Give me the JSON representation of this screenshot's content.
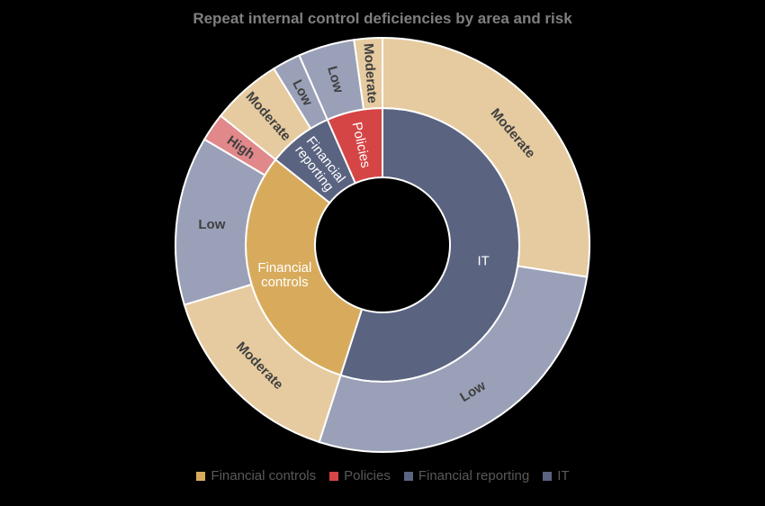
{
  "chart_data": {
    "type": "sunburst",
    "title": "Repeat internal control deficiencies by area and risk",
    "start_angle_deg": 0,
    "direction": "clockwise",
    "categories": [
      {
        "name": "IT",
        "label_lines": [
          "IT"
        ],
        "color": "#5a6380",
        "children": [
          {
            "name": "Moderate",
            "value": 25,
            "color": "#e6cba0"
          },
          {
            "name": "Low",
            "value": 25,
            "color": "#9aa0b7"
          }
        ]
      },
      {
        "name": "Financial controls",
        "label_lines": [
          "Financial",
          "controls"
        ],
        "color": "#d8ab5c",
        "children": [
          {
            "name": "Moderate",
            "value": 14,
            "color": "#e6cba0"
          },
          {
            "name": "Low",
            "value": 12,
            "color": "#9aa0b7"
          },
          {
            "name": "High",
            "value": 2,
            "color": "#e0888a"
          }
        ]
      },
      {
        "name": "Financial reporting",
        "label_lines": [
          "Financial",
          "reporting"
        ],
        "color": "#5a6380",
        "children": [
          {
            "name": "Moderate",
            "value": 5,
            "color": "#e6cba0"
          },
          {
            "name": "Low",
            "value": 2,
            "color": "#9aa0b7"
          }
        ]
      },
      {
        "name": "Policies",
        "label_lines": [
          "Policies"
        ],
        "color": "#d54546",
        "children": [
          {
            "name": "Low",
            "value": 4,
            "color": "#9aa0b7"
          },
          {
            "name": "Moderate",
            "value": 2,
            "color": "#e6cba0"
          }
        ]
      }
    ],
    "legend": {
      "placement": "bottom",
      "entries": [
        {
          "name": "Financial controls",
          "color": "#d8ab5c"
        },
        {
          "name": "Policies",
          "color": "#d54546"
        },
        {
          "name": "Financial reporting",
          "color": "#5a6380"
        },
        {
          "name": "IT",
          "color": "#5a6380"
        }
      ]
    }
  }
}
